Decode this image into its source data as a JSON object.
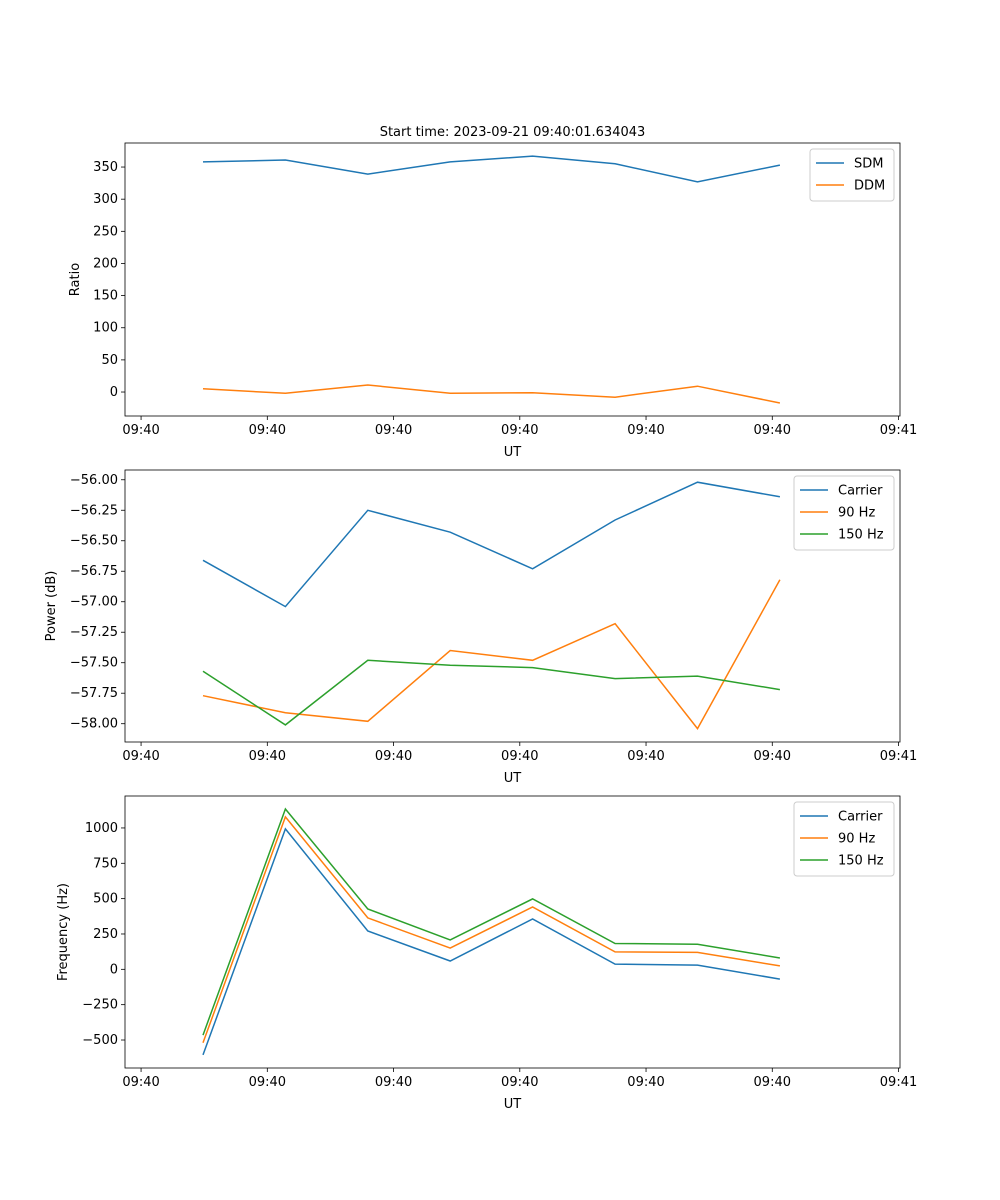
{
  "chart_data": [
    {
      "type": "line",
      "title": "Start time: 2023-09-21 09:40:01.634043",
      "xlabel": "UT",
      "ylabel": "Ratio",
      "x": [
        0,
        1,
        2,
        3,
        4,
        5,
        6,
        7
      ],
      "xlim": [
        -0.947,
        8.458
      ],
      "xticks": [
        -0.752,
        0.78,
        2.312,
        3.844,
        5.376,
        6.908,
        8.44
      ],
      "xticklabels": [
        "09:40",
        "09:40",
        "09:40",
        "09:40",
        "09:40",
        "09:40",
        "09:41"
      ],
      "ylim": [
        -37.3,
        387.4
      ],
      "yticks": [
        0,
        50,
        100,
        150,
        200,
        250,
        300,
        350
      ],
      "yticklabels": [
        "0",
        "50",
        "100",
        "150",
        "200",
        "250",
        "300",
        "350"
      ],
      "legend": "top-right",
      "series": [
        {
          "name": "SDM",
          "color": "#1f77b4",
          "values": [
            358,
            361,
            339,
            358,
            367,
            355,
            327,
            353
          ]
        },
        {
          "name": "DDM",
          "color": "#ff7f0e",
          "values": [
            5,
            -2,
            11,
            -2,
            -1,
            -8,
            9,
            -17
          ]
        }
      ]
    },
    {
      "type": "line",
      "xlabel": "UT",
      "ylabel": "Power (dB)",
      "x": [
        0,
        1,
        2,
        3,
        4,
        5,
        6,
        7
      ],
      "xlim": [
        -0.947,
        8.458
      ],
      "xticks": [
        -0.752,
        0.78,
        2.312,
        3.844,
        5.376,
        6.908,
        8.44
      ],
      "xticklabels": [
        "09:40",
        "09:40",
        "09:40",
        "09:40",
        "09:40",
        "09:40",
        "09:41"
      ],
      "ylim": [
        -58.15,
        -55.92
      ],
      "yticks": [
        -58,
        -57.75,
        -57.5,
        -57.25,
        -57,
        -56.75,
        -56.5,
        -56.25,
        -56
      ],
      "yticklabels": [
        "−58.00",
        "−57.75",
        "−57.50",
        "−57.25",
        "−57.00",
        "−56.75",
        "−56.50",
        "−56.25",
        "−56.00"
      ],
      "legend": "top-right",
      "series": [
        {
          "name": "Carrier",
          "color": "#1f77b4",
          "values": [
            -56.66,
            -57.04,
            -56.25,
            -56.43,
            -56.73,
            -56.33,
            -56.02,
            -56.14
          ]
        },
        {
          "name": "90 Hz",
          "color": "#ff7f0e",
          "values": [
            -57.77,
            -57.91,
            -57.98,
            -57.4,
            -57.48,
            -57.18,
            -58.04,
            -56.82
          ]
        },
        {
          "name": "150 Hz",
          "color": "#2ca02c",
          "values": [
            -57.57,
            -58.01,
            -57.48,
            -57.52,
            -57.54,
            -57.63,
            -57.61,
            -57.72
          ]
        }
      ]
    },
    {
      "type": "line",
      "xlabel": "UT",
      "ylabel": "Frequency (Hz)",
      "x": [
        0,
        1,
        2,
        3,
        4,
        5,
        6,
        7
      ],
      "xlim": [
        -0.947,
        8.458
      ],
      "xticks": [
        -0.752,
        0.78,
        2.312,
        3.844,
        5.376,
        6.908,
        8.44
      ],
      "xticklabels": [
        "09:40",
        "09:40",
        "09:40",
        "09:40",
        "09:40",
        "09:40",
        "09:41"
      ],
      "ylim": [
        -698,
        1226
      ],
      "yticks": [
        -500,
        -250,
        0,
        250,
        500,
        750,
        1000
      ],
      "yticklabels": [
        "−500",
        "−250",
        "0",
        "250",
        "500",
        "750",
        "1000"
      ],
      "legend": "top-right",
      "series": [
        {
          "name": "Carrier",
          "color": "#1f77b4",
          "values": [
            -605,
            993,
            271,
            59,
            356,
            37,
            30,
            -69
          ]
        },
        {
          "name": "90 Hz",
          "color": "#ff7f0e",
          "values": [
            -520,
            1078,
            364,
            150,
            441,
            123,
            120,
            24
          ]
        },
        {
          "name": "150 Hz",
          "color": "#2ca02c",
          "values": [
            -465,
            1134,
            427,
            208,
            498,
            183,
            178,
            80
          ]
        }
      ]
    }
  ]
}
